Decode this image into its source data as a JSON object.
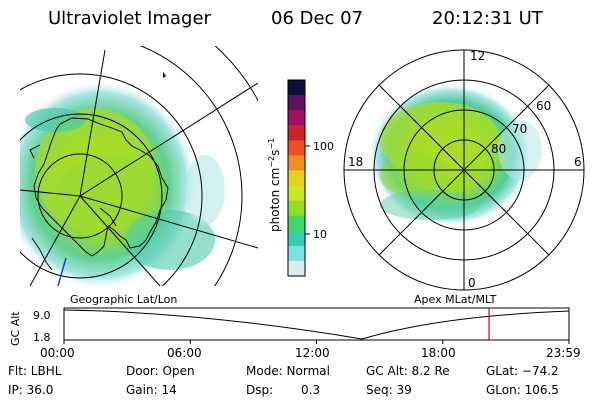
{
  "header": {
    "instrument": "Ultraviolet Imager",
    "date": "06 Dec 07",
    "time": "20:12:31 UT"
  },
  "left_panel": {
    "label": "Geographic Lat/Lon"
  },
  "right_panel": {
    "label": "Apex MLat/MLT",
    "mlt_labels": {
      "top": "12",
      "bottom": "0",
      "left": "18",
      "right": "6"
    },
    "lat_labels": [
      "60",
      "70",
      "80"
    ]
  },
  "colorbar": {
    "unit_prefix": "photon cm",
    "unit_exp1": "−2",
    "unit_mid": "s",
    "unit_exp2": "−1",
    "ticks": [
      "100",
      "10"
    ],
    "colors": [
      "#101040",
      "#601060",
      "#a01060",
      "#d02030",
      "#f05020",
      "#f09020",
      "#e8d020",
      "#c8e820",
      "#90e020",
      "#40d860",
      "#30d0b0",
      "#80e0e0",
      "#d8eeee"
    ]
  },
  "timeline": {
    "ylabel": "GC Alt",
    "ytick_high": "9.0",
    "ytick_low": "1.8",
    "xticks": [
      "00:00",
      "06:00",
      "12:00",
      "18:00",
      "23:59"
    ],
    "cursor_time_hours": 20.2,
    "cursor_color": "#d00000"
  },
  "status": {
    "flt": "Flt: LBHL",
    "ip": "IP: 36.0",
    "door": "Door: Open",
    "gain": "Gain: 14",
    "mode": "Mode: Normal",
    "dsp_label": "Dsp:",
    "dsp_value": "0.3",
    "gc_alt": "GC Alt: 8.2 Re",
    "seq": "Seq: 39",
    "glat": "GLat: −74.2",
    "glon": "GLon: 106.5"
  }
}
